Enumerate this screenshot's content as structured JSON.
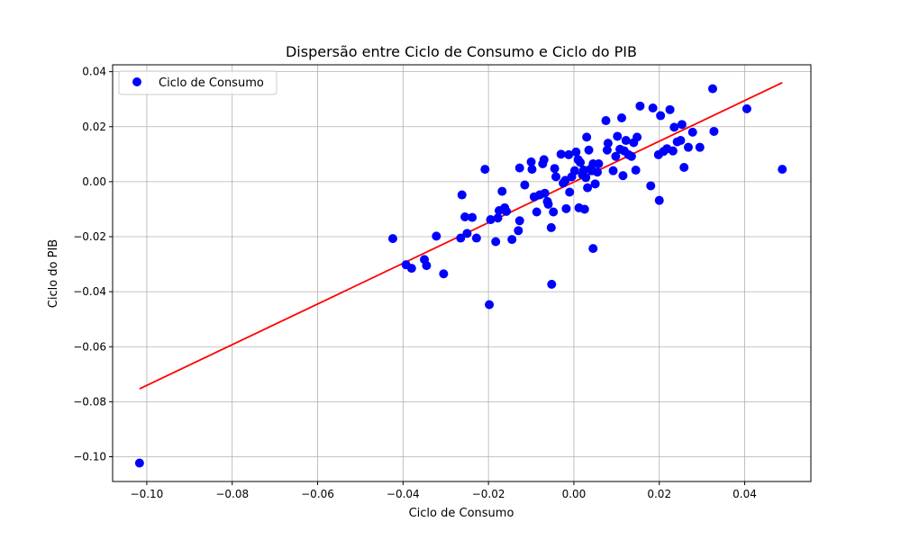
{
  "chart_data": {
    "type": "scatter",
    "title": "Dispersão entre Ciclo de Consumo e Ciclo do PIB",
    "xlabel": "Ciclo de Consumo",
    "ylabel": "Ciclo do PIB",
    "xlim": [
      -0.108,
      0.0555
    ],
    "ylim": [
      -0.109,
      0.0425
    ],
    "xticks": [
      -0.1,
      -0.08,
      -0.06,
      -0.04,
      -0.02,
      0.0,
      0.02,
      0.04
    ],
    "xtick_labels": [
      "−0.10",
      "−0.08",
      "−0.06",
      "−0.04",
      "−0.02",
      "0.00",
      "0.02",
      "0.04"
    ],
    "yticks": [
      -0.1,
      -0.08,
      -0.06,
      -0.04,
      -0.02,
      0.0,
      0.02,
      0.04
    ],
    "ytick_labels": [
      "−0.10",
      "−0.08",
      "−0.06",
      "−0.04",
      "−0.02",
      "0.00",
      "0.02",
      "0.04"
    ],
    "grid": true,
    "legend_position": "top-left",
    "colors": {
      "points": "#0000ff",
      "line": "#ff0000",
      "grid": "#b0b0b0"
    },
    "series": [
      {
        "name": "Ciclo de Consumo",
        "kind": "scatter",
        "points": [
          [
            -0.1017,
            -0.1023
          ],
          [
            -0.0424,
            -0.0207
          ],
          [
            -0.0393,
            -0.0302
          ],
          [
            -0.038,
            -0.0315
          ],
          [
            -0.035,
            -0.0283
          ],
          [
            -0.0345,
            -0.0305
          ],
          [
            -0.0322,
            -0.0198
          ],
          [
            -0.0305,
            -0.0335
          ],
          [
            -0.0265,
            -0.0205
          ],
          [
            -0.0262,
            -0.0048
          ],
          [
            -0.0255,
            -0.0128
          ],
          [
            -0.025,
            -0.0188
          ],
          [
            -0.0238,
            -0.013
          ],
          [
            -0.0228,
            -0.0205
          ],
          [
            -0.0208,
            0.0045
          ],
          [
            -0.0198,
            -0.0447
          ],
          [
            -0.0195,
            -0.0138
          ],
          [
            -0.0183,
            -0.0218
          ],
          [
            -0.0178,
            -0.0132
          ],
          [
            -0.0175,
            -0.0105
          ],
          [
            -0.0168,
            -0.0035
          ],
          [
            -0.0162,
            -0.0095
          ],
          [
            -0.0158,
            -0.0108
          ],
          [
            -0.0145,
            -0.021
          ],
          [
            -0.013,
            -0.0178
          ],
          [
            -0.0127,
            0.005
          ],
          [
            -0.0127,
            -0.0142
          ],
          [
            -0.0115,
            -0.0012
          ],
          [
            -0.01,
            0.0072
          ],
          [
            -0.0098,
            0.0045
          ],
          [
            -0.0093,
            -0.0055
          ],
          [
            -0.0087,
            -0.011
          ],
          [
            -0.008,
            -0.0048
          ],
          [
            -0.0073,
            0.0065
          ],
          [
            -0.007,
            0.008
          ],
          [
            -0.0068,
            -0.0042
          ],
          [
            -0.0062,
            -0.0072
          ],
          [
            -0.006,
            -0.0082
          ],
          [
            -0.0053,
            -0.0167
          ],
          [
            -0.0052,
            -0.0373
          ],
          [
            -0.0048,
            -0.011
          ],
          [
            -0.0045,
            0.0048
          ],
          [
            -0.0042,
            0.0018
          ],
          [
            -0.003,
            0.01
          ],
          [
            -0.0025,
            -0.0005
          ],
          [
            -0.002,
            0.0005
          ],
          [
            -0.0018,
            -0.0098
          ],
          [
            -0.0012,
            0.0098
          ],
          [
            -0.001,
            -0.0038
          ],
          [
            -0.0005,
            0.0018
          ],
          [
            0.0002,
            0.004
          ],
          [
            0.0005,
            0.0108
          ],
          [
            0.001,
            0.008
          ],
          [
            0.0012,
            -0.0095
          ],
          [
            0.0015,
            0.007
          ],
          [
            0.002,
            0.0025
          ],
          [
            0.0023,
            0.0042
          ],
          [
            0.0025,
            -0.01
          ],
          [
            0.0028,
            0.0015
          ],
          [
            0.003,
            0.0162
          ],
          [
            0.0032,
            -0.0022
          ],
          [
            0.0035,
            0.0115
          ],
          [
            0.0038,
            0.0045
          ],
          [
            0.0042,
            0.004
          ],
          [
            0.0045,
            0.0065
          ],
          [
            0.0045,
            -0.0243
          ],
          [
            0.005,
            -0.0008
          ],
          [
            0.0055,
            0.0035
          ],
          [
            0.0058,
            0.0065
          ],
          [
            0.0075,
            0.0222
          ],
          [
            0.0078,
            0.0115
          ],
          [
            0.008,
            0.014
          ],
          [
            0.0092,
            0.004
          ],
          [
            0.0098,
            0.0092
          ],
          [
            0.0102,
            0.0165
          ],
          [
            0.0108,
            0.0118
          ],
          [
            0.0112,
            0.0232
          ],
          [
            0.0115,
            0.0022
          ],
          [
            0.0118,
            0.0112
          ],
          [
            0.0122,
            0.015
          ],
          [
            0.0128,
            0.0098
          ],
          [
            0.0135,
            0.0092
          ],
          [
            0.014,
            0.0142
          ],
          [
            0.0145,
            0.0042
          ],
          [
            0.0148,
            0.0162
          ],
          [
            0.0155,
            0.0275
          ],
          [
            0.018,
            -0.0015
          ],
          [
            0.0185,
            0.0268
          ],
          [
            0.0198,
            0.0098
          ],
          [
            0.02,
            -0.0068
          ],
          [
            0.0203,
            0.024
          ],
          [
            0.021,
            0.011
          ],
          [
            0.0218,
            0.012
          ],
          [
            0.0225,
            0.0262
          ],
          [
            0.0232,
            0.0112
          ],
          [
            0.0235,
            0.0198
          ],
          [
            0.0242,
            0.0145
          ],
          [
            0.025,
            0.015
          ],
          [
            0.0253,
            0.0208
          ],
          [
            0.0258,
            0.0052
          ],
          [
            0.0268,
            0.0125
          ],
          [
            0.0278,
            0.018
          ],
          [
            0.0295,
            0.0125
          ],
          [
            0.0325,
            0.0338
          ],
          [
            0.0328,
            0.0183
          ],
          [
            0.0405,
            0.0265
          ],
          [
            0.0488,
            0.0045
          ]
        ]
      },
      {
        "name": "",
        "kind": "line",
        "points": [
          [
            -0.1017,
            -0.0753
          ],
          [
            0.0488,
            0.036
          ]
        ]
      }
    ]
  }
}
